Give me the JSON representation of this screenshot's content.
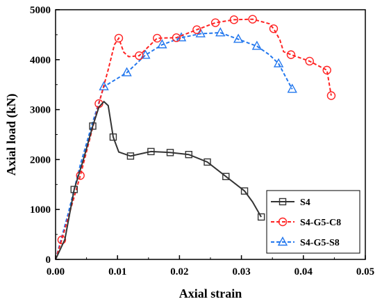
{
  "chart_data": {
    "type": "line",
    "xlabel": "Axial strain",
    "ylabel": "Axial load (kN)",
    "xlim": [
      0,
      0.05
    ],
    "ylim": [
      0,
      5000
    ],
    "x_ticks": [
      "0.00",
      "0.01",
      "0.02",
      "0.03",
      "0.04",
      "0.05"
    ],
    "y_ticks": [
      "0",
      "1000",
      "2000",
      "3000",
      "4000",
      "5000"
    ],
    "legend_position": "bottom-right",
    "series": [
      {
        "name": "S4",
        "color": "#333333",
        "dash": "solid",
        "marker": "square",
        "points": [
          [
            0,
            0
          ],
          [
            0.0015,
            400
          ],
          [
            0.003,
            1400
          ],
          [
            0.0045,
            2000
          ],
          [
            0.006,
            2670
          ],
          [
            0.007,
            3050
          ],
          [
            0.0078,
            3160
          ],
          [
            0.0085,
            3080
          ],
          [
            0.0093,
            2450
          ],
          [
            0.0102,
            2150
          ],
          [
            0.0121,
            2070
          ],
          [
            0.0154,
            2160
          ],
          [
            0.0185,
            2140
          ],
          [
            0.0215,
            2100
          ],
          [
            0.0245,
            1950
          ],
          [
            0.0275,
            1660
          ],
          [
            0.0305,
            1370
          ],
          [
            0.0318,
            1150
          ],
          [
            0.0332,
            850
          ]
        ],
        "markers": [
          [
            0.003,
            1400
          ],
          [
            0.006,
            2670
          ],
          [
            0.0093,
            2450
          ],
          [
            0.0121,
            2070
          ],
          [
            0.0154,
            2160
          ],
          [
            0.0185,
            2140
          ],
          [
            0.0215,
            2100
          ],
          [
            0.0245,
            1950
          ],
          [
            0.0275,
            1660
          ],
          [
            0.0305,
            1370
          ],
          [
            0.0332,
            850
          ]
        ]
      },
      {
        "name": "S4-G5-C8",
        "color": "#ff2222",
        "dash": "dashed",
        "marker": "circle",
        "points": [
          [
            0,
            0
          ],
          [
            0.001,
            390
          ],
          [
            0.004,
            1680
          ],
          [
            0.007,
            3120
          ],
          [
            0.0085,
            3800
          ],
          [
            0.0095,
            4300
          ],
          [
            0.0102,
            4430
          ],
          [
            0.011,
            4150
          ],
          [
            0.0118,
            4060
          ],
          [
            0.0135,
            4080
          ],
          [
            0.0164,
            4430
          ],
          [
            0.0195,
            4440
          ],
          [
            0.0228,
            4600
          ],
          [
            0.0258,
            4740
          ],
          [
            0.0288,
            4800
          ],
          [
            0.0318,
            4810
          ],
          [
            0.0345,
            4720
          ],
          [
            0.0352,
            4620
          ],
          [
            0.0362,
            4400
          ],
          [
            0.0368,
            4160
          ],
          [
            0.038,
            4100
          ],
          [
            0.041,
            3970
          ],
          [
            0.0438,
            3790
          ],
          [
            0.0445,
            3280
          ]
        ],
        "markers": [
          [
            0.001,
            390
          ],
          [
            0.004,
            1680
          ],
          [
            0.007,
            3120
          ],
          [
            0.0102,
            4430
          ],
          [
            0.0135,
            4080
          ],
          [
            0.0164,
            4430
          ],
          [
            0.0195,
            4440
          ],
          [
            0.0228,
            4600
          ],
          [
            0.0258,
            4740
          ],
          [
            0.0288,
            4800
          ],
          [
            0.0318,
            4810
          ],
          [
            0.0352,
            4620
          ],
          [
            0.038,
            4100
          ],
          [
            0.041,
            3970
          ],
          [
            0.0438,
            3790
          ],
          [
            0.0445,
            3280
          ]
        ]
      },
      {
        "name": "S4-G5-S8",
        "color": "#2277ee",
        "dash": "dashed",
        "marker": "triangle",
        "points": [
          [
            0,
            0
          ],
          [
            0.002,
            900
          ],
          [
            0.004,
            1900
          ],
          [
            0.006,
            2750
          ],
          [
            0.0078,
            3460
          ],
          [
            0.0115,
            3740
          ],
          [
            0.0145,
            4090
          ],
          [
            0.0172,
            4300
          ],
          [
            0.0203,
            4440
          ],
          [
            0.0234,
            4520
          ],
          [
            0.0266,
            4540
          ],
          [
            0.0295,
            4410
          ],
          [
            0.0325,
            4270
          ],
          [
            0.0345,
            4100
          ],
          [
            0.036,
            3920
          ],
          [
            0.0382,
            3410
          ]
        ],
        "markers": [
          [
            0.0078,
            3460
          ],
          [
            0.0115,
            3740
          ],
          [
            0.0145,
            4090
          ],
          [
            0.0172,
            4300
          ],
          [
            0.0203,
            4440
          ],
          [
            0.0234,
            4520
          ],
          [
            0.0266,
            4540
          ],
          [
            0.0295,
            4410
          ],
          [
            0.0325,
            4270
          ],
          [
            0.036,
            3920
          ],
          [
            0.0382,
            3410
          ]
        ]
      }
    ]
  }
}
